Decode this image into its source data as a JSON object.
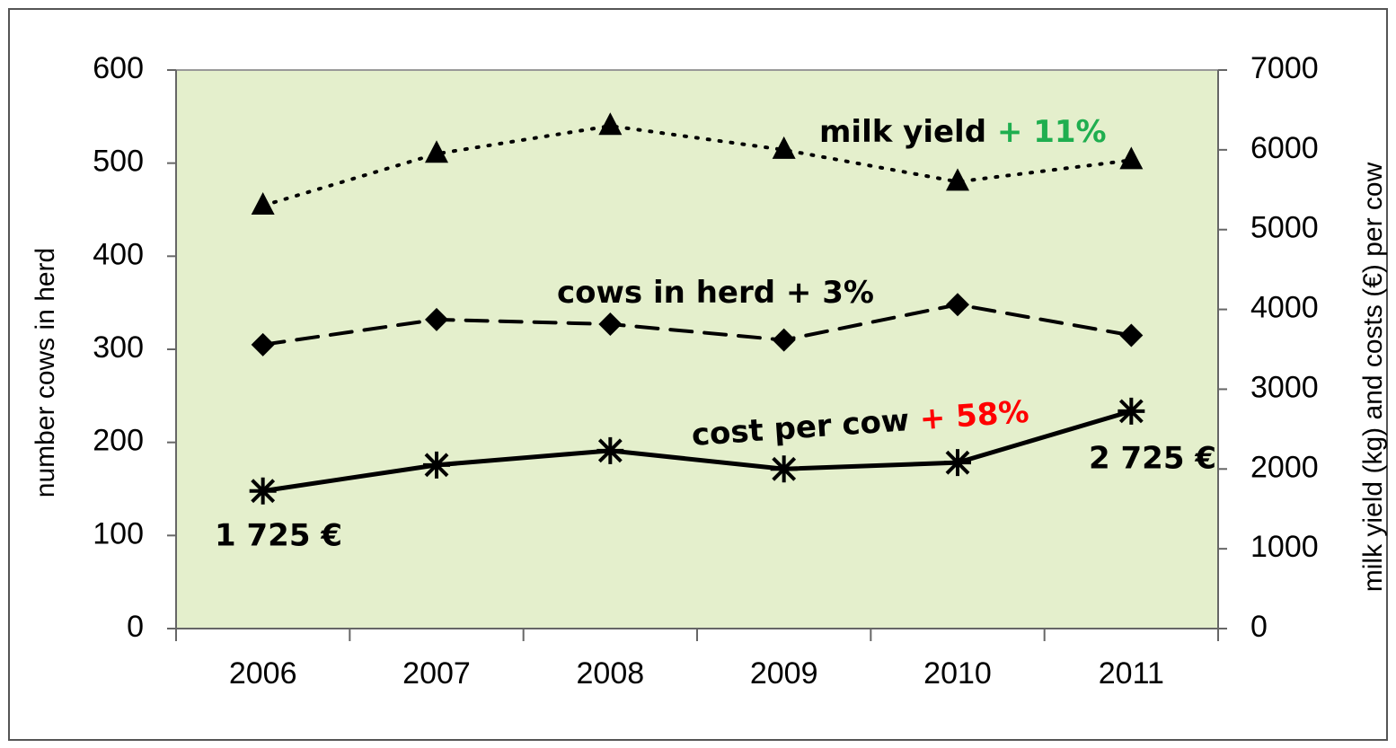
{
  "chart_data": {
    "type": "line",
    "categories": [
      "2006",
      "2007",
      "2008",
      "2009",
      "2010",
      "2011"
    ],
    "ylabel": "number cows in herd",
    "y2label": "milk yield (kg) and costs (€) per cow",
    "ylim": [
      0,
      600
    ],
    "yticks": [
      0,
      100,
      200,
      300,
      400,
      500,
      600
    ],
    "y2lim": [
      0,
      7000
    ],
    "y2ticks": [
      0,
      1000,
      2000,
      3000,
      4000,
      5000,
      6000,
      7000
    ],
    "series": [
      {
        "name": "milk yield",
        "color": "#000000",
        "axis": "y2",
        "marker": "triangle",
        "line_style": "dotted",
        "values": [
          5300,
          5950,
          6300,
          6000,
          5600,
          5870
        ],
        "annotation": {
          "text": "+ 11%",
          "color": "#1fae4f"
        }
      },
      {
        "name": "cows in herd",
        "color": "#000000",
        "axis": "y",
        "marker": "diamond",
        "line_style": "dashed",
        "values": [
          305,
          332,
          327,
          310,
          348,
          315
        ],
        "annotation": {
          "text": "+ 3%",
          "color": "#000000"
        }
      },
      {
        "name": "cost per cow",
        "color": "#000000",
        "axis": "y2",
        "marker": "star",
        "line_style": "solid",
        "values": [
          1725,
          2050,
          2230,
          2000,
          2080,
          2725
        ],
        "value_labels": [
          "1 725 €",
          null,
          null,
          null,
          null,
          "2 725 €"
        ],
        "annotation": {
          "text": "+ 58%",
          "color": "#ff0000"
        }
      }
    ]
  }
}
